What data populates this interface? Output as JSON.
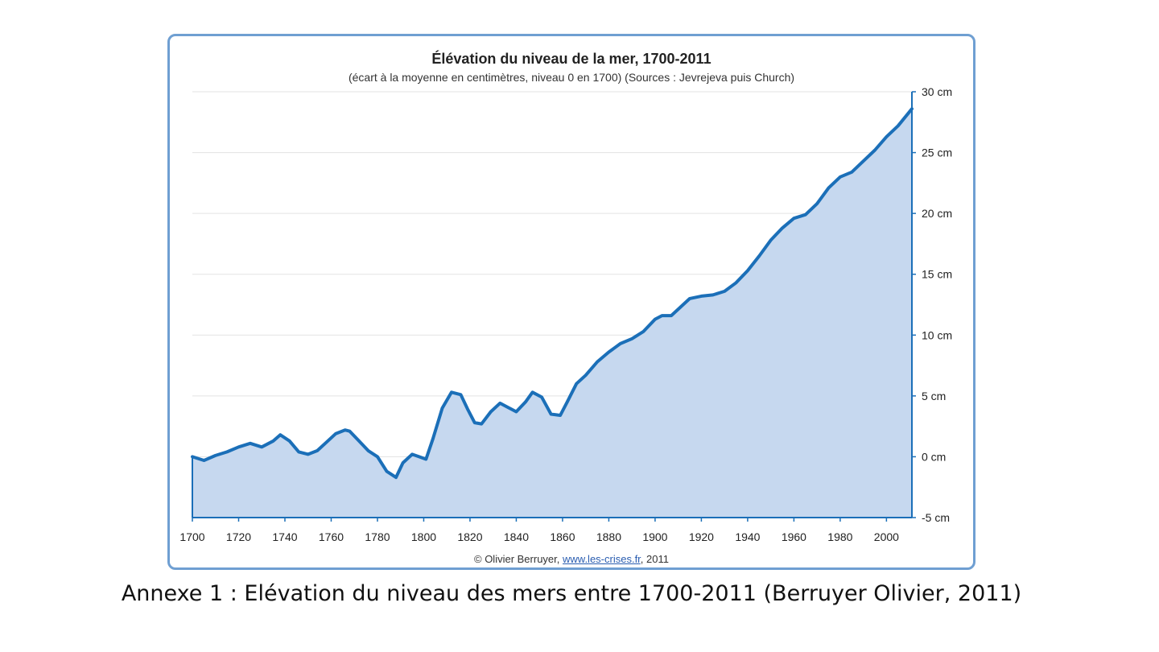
{
  "caption": "Annexe 1 : Elévation du niveau des mers entre 1700-2011 (Berruyer Olivier, 2011)",
  "credit": {
    "prefix": "© Olivier Berruyer, ",
    "link": "www.les-crises.fr",
    "suffix": ",  2011"
  },
  "colors": {
    "frame": "#6f9fd2",
    "line": "#1b6fb8",
    "fill": "#c6d8ef",
    "grid": "#e3e3e3"
  },
  "chart_data": {
    "type": "area",
    "title": "Élévation du niveau de la mer, 1700-2011",
    "subtitle": "(écart à la moyenne en centimètres, niveau 0 en 1700) (Sources : Jevrejeva puis Church)",
    "xlabel": "",
    "ylabel": "",
    "xlim": [
      1700,
      2011
    ],
    "ylim": [
      -5,
      30
    ],
    "x_ticks": [
      "1700",
      "1720",
      "1740",
      "1760",
      "1780",
      "1800",
      "1820",
      "1840",
      "1860",
      "1880",
      "1900",
      "1920",
      "1940",
      "1960",
      "1980",
      "2000"
    ],
    "y_ticks": [
      {
        "value": 30,
        "label": "30 cm"
      },
      {
        "value": 25,
        "label": "25 cm"
      },
      {
        "value": 20,
        "label": "20 cm"
      },
      {
        "value": 15,
        "label": "15 cm"
      },
      {
        "value": 10,
        "label": "10 cm"
      },
      {
        "value": 5,
        "label": "5 cm"
      },
      {
        "value": 0,
        "label": "0 cm"
      },
      {
        "value": -5,
        "label": "-5 cm"
      }
    ],
    "grid": true,
    "y_axis_position": "right",
    "x": [
      1700,
      1705,
      1710,
      1715,
      1720,
      1725,
      1730,
      1735,
      1738,
      1742,
      1746,
      1750,
      1754,
      1758,
      1762,
      1766,
      1768,
      1772,
      1776,
      1780,
      1784,
      1788,
      1791,
      1795,
      1798,
      1801,
      1804,
      1808,
      1812,
      1816,
      1819,
      1822,
      1825,
      1829,
      1833,
      1837,
      1840,
      1844,
      1847,
      1851,
      1855,
      1859,
      1862,
      1866,
      1870,
      1875,
      1880,
      1885,
      1890,
      1895,
      1900,
      1903,
      1907,
      1911,
      1915,
      1920,
      1925,
      1930,
      1935,
      1940,
      1945,
      1950,
      1955,
      1960,
      1965,
      1970,
      1975,
      1980,
      1985,
      1990,
      1995,
      2000,
      2005,
      2011
    ],
    "y": [
      0,
      -0.3,
      0.1,
      0.4,
      0.8,
      1.1,
      0.8,
      1.3,
      1.8,
      1.3,
      0.4,
      0.2,
      0.5,
      1.2,
      1.9,
      2.2,
      2.1,
      1.3,
      0.5,
      0,
      -1.2,
      -1.7,
      -0.5,
      0.2,
      0,
      -0.2,
      1.5,
      4.0,
      5.3,
      5.1,
      3.9,
      2.8,
      2.7,
      3.7,
      4.4,
      4.0,
      3.7,
      4.5,
      5.3,
      4.9,
      3.5,
      3.4,
      4.5,
      6.0,
      6.7,
      7.8,
      8.6,
      9.3,
      9.7,
      10.3,
      11.3,
      11.6,
      11.6,
      12.3,
      13.0,
      13.2,
      13.3,
      13.6,
      14.3,
      15.3,
      16.5,
      17.8,
      18.8,
      19.6,
      19.9,
      20.8,
      22.1,
      23.0,
      23.4,
      24.3,
      25.2,
      26.3,
      27.2,
      28.6
    ]
  }
}
